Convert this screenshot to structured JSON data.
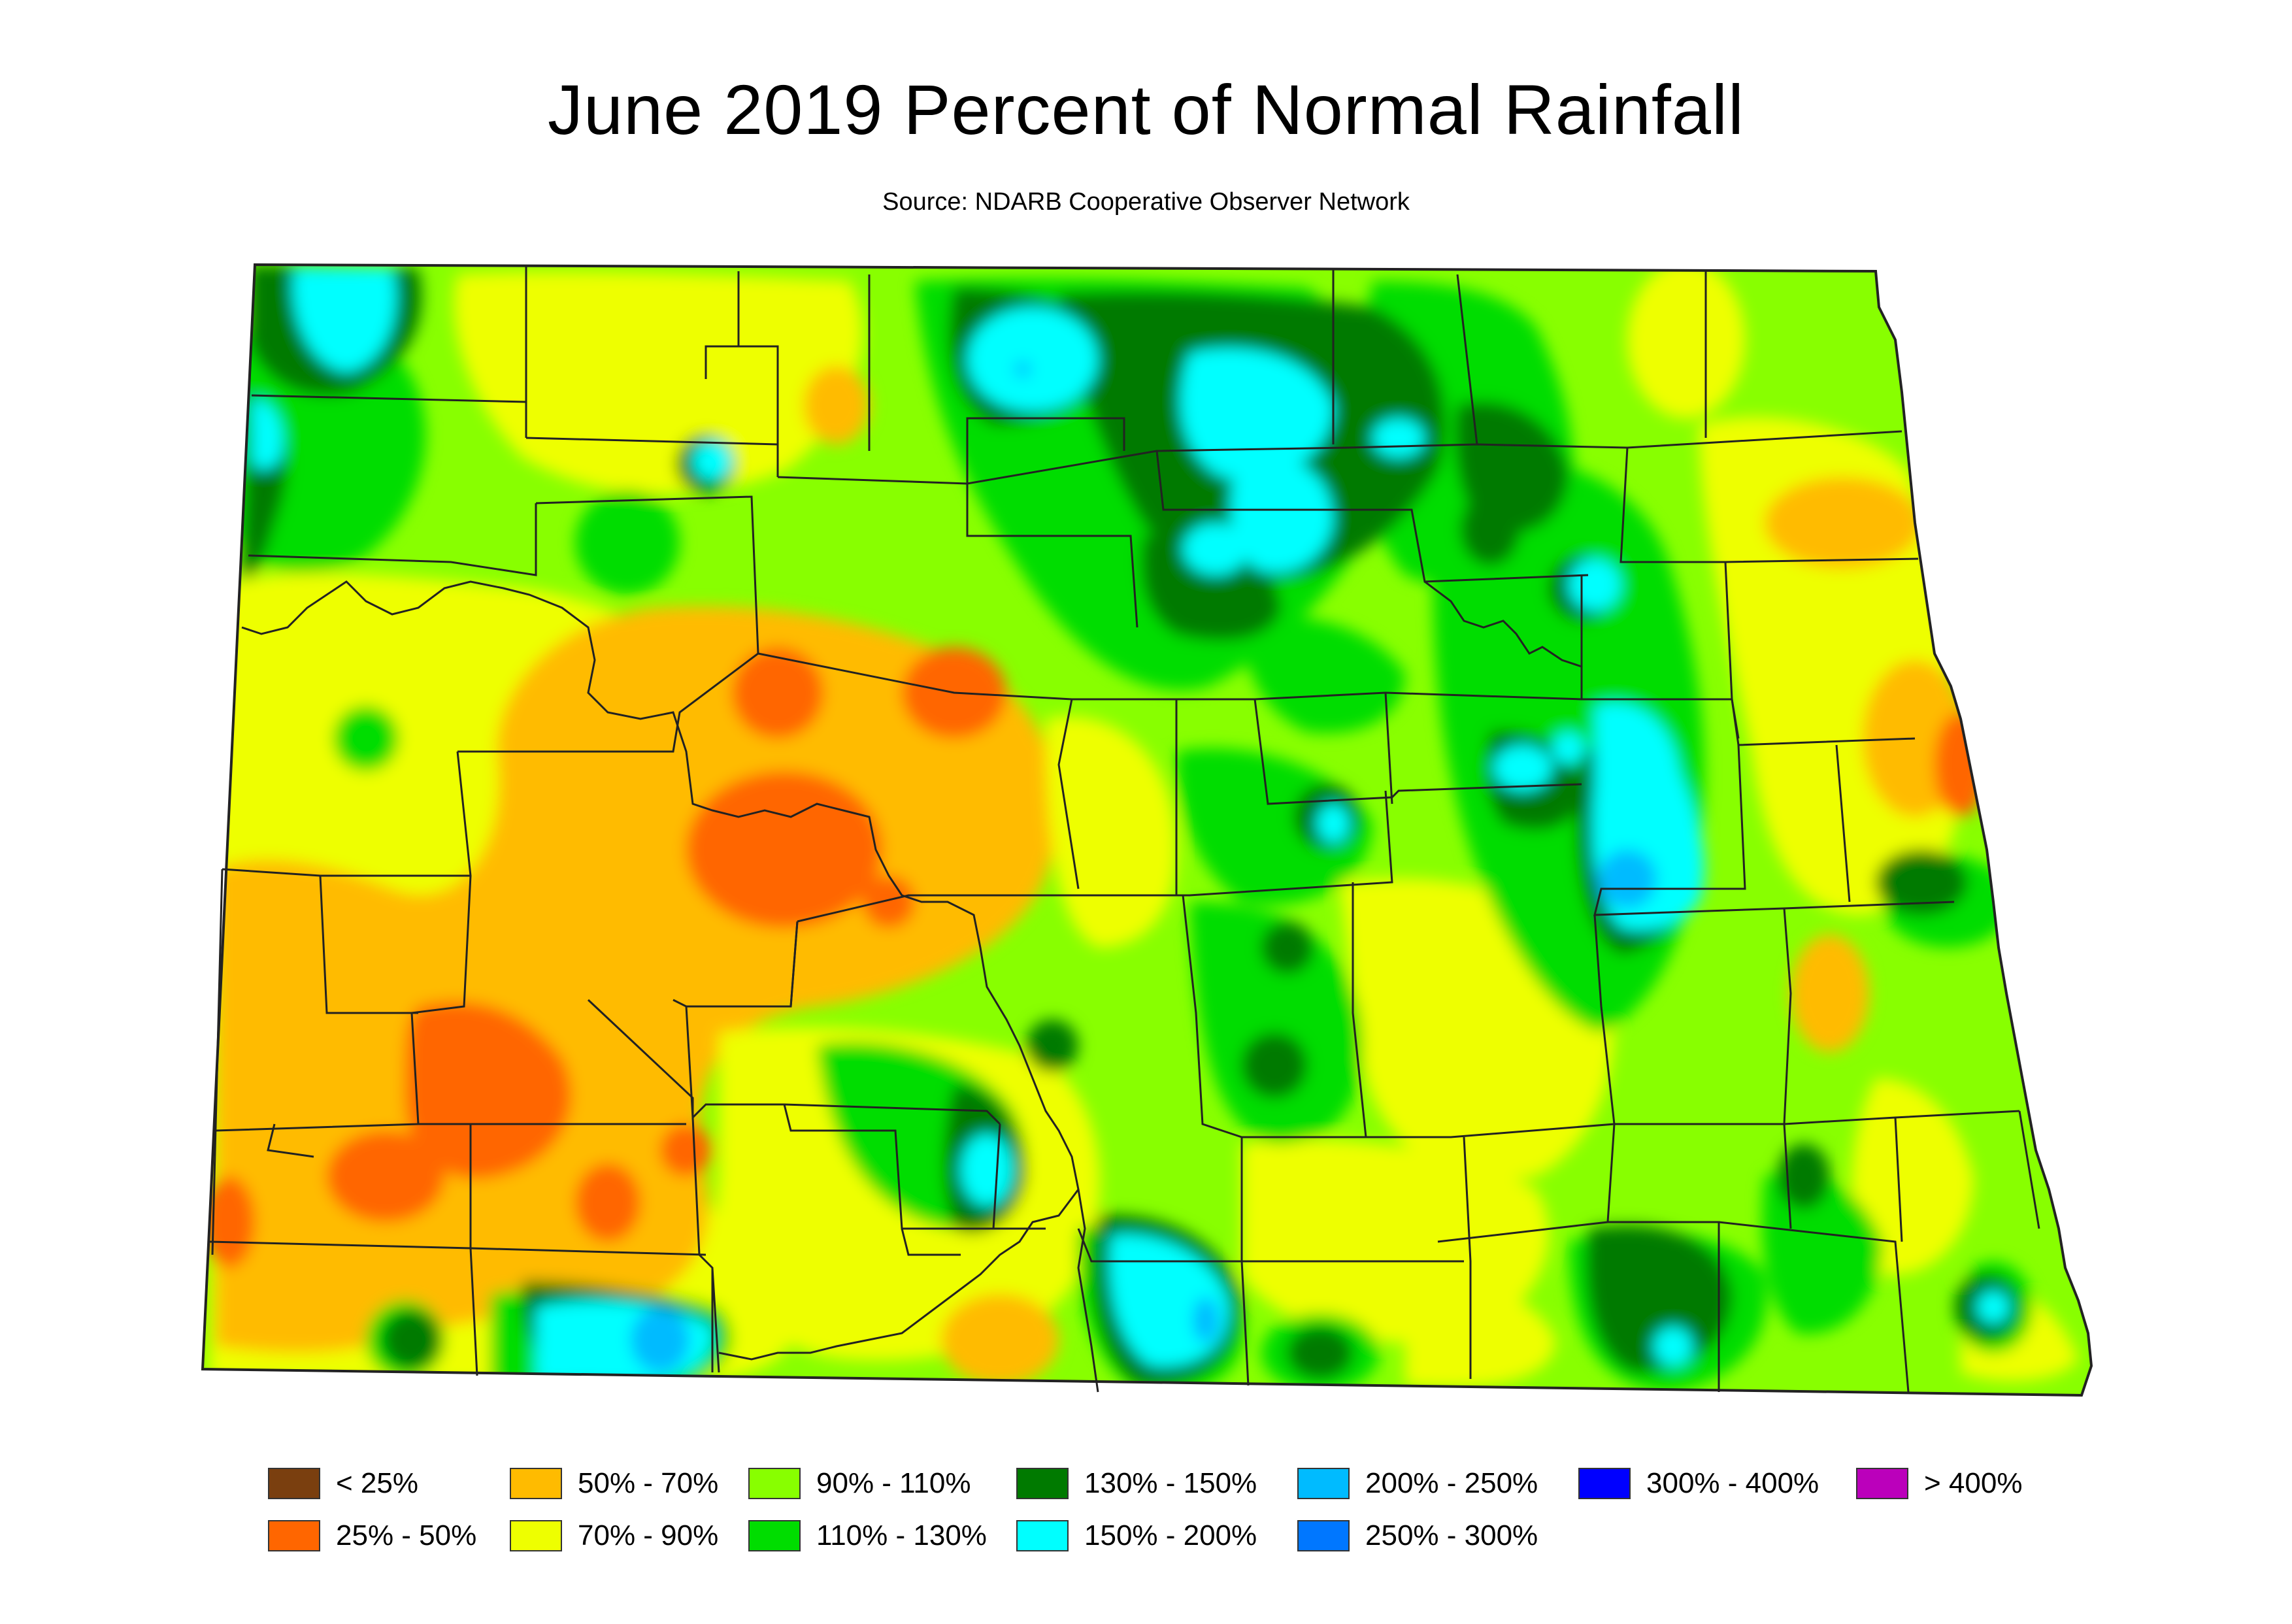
{
  "header": {
    "title": "June 2019 Percent of Normal Rainfall",
    "source": "Source: NDARB Cooperative Observer Network"
  },
  "legend": {
    "items": [
      {
        "label": "< 25%",
        "color": "#7a3f0f"
      },
      {
        "label": "25% - 50%",
        "color": "#ff6600"
      },
      {
        "label": "50% - 70%",
        "color": "#ffbb00"
      },
      {
        "label": "70% - 90%",
        "color": "#eeff00"
      },
      {
        "label": "90% - 110%",
        "color": "#88ff00"
      },
      {
        "label": "110% - 130%",
        "color": "#00dd00"
      },
      {
        "label": "130% - 150%",
        "color": "#007a00"
      },
      {
        "label": "150% - 200%",
        "color": "#00ffff"
      },
      {
        "label": "200% - 250%",
        "color": "#00bbff"
      },
      {
        "label": "250% - 300%",
        "color": "#0077ff"
      },
      {
        "label": "300% - 400%",
        "color": "#0000ff"
      },
      {
        "label": "> 400%",
        "color": "#bb00bb"
      }
    ]
  }
}
